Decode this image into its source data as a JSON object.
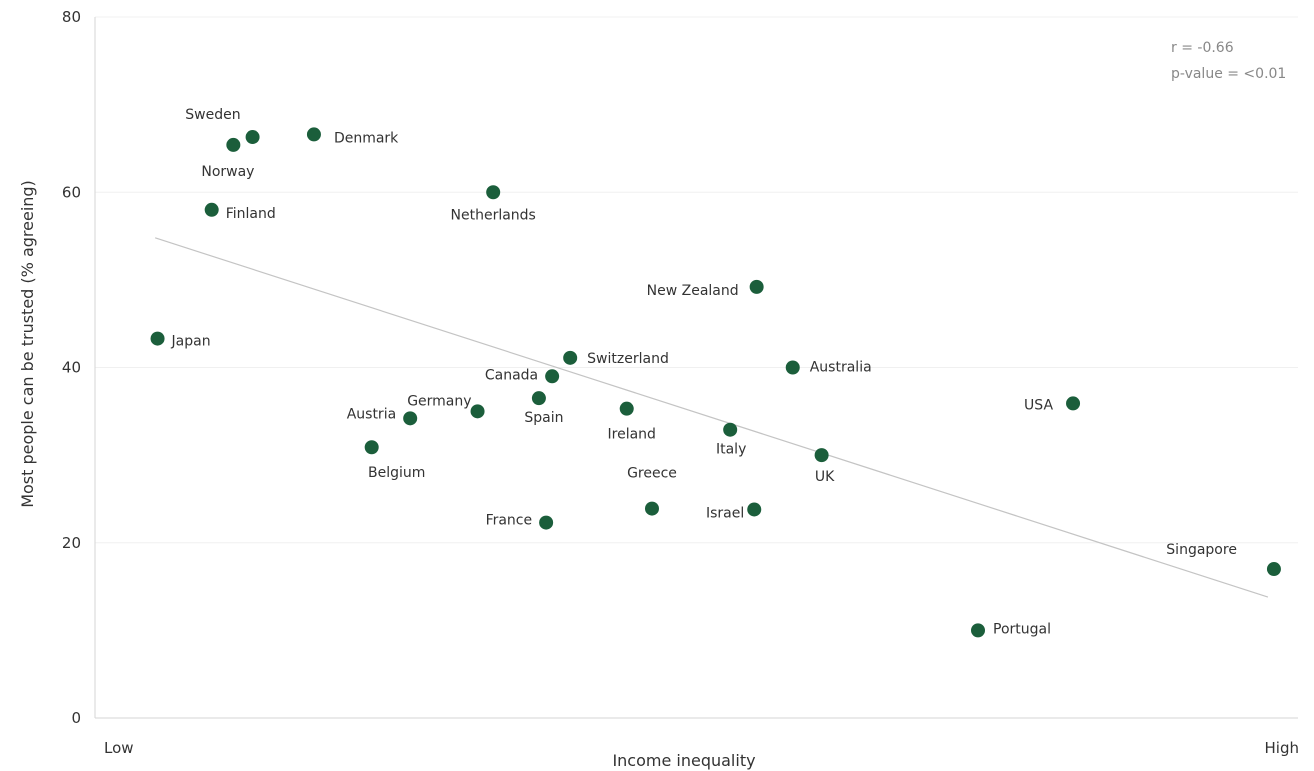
{
  "chart_data": {
    "type": "scatter",
    "xlabel": "Income inequality",
    "ylabel": "Most people can be trusted (% agreeing)",
    "x_tick_labels": {
      "low": "Low",
      "high": "High"
    },
    "ylim": [
      0,
      80
    ],
    "y_ticks": [
      0,
      20,
      40,
      60,
      80
    ],
    "x_scale": "relative (no numeric ticks)",
    "grid": "horizontal",
    "legend": "none",
    "stats": {
      "r": "r = -0.66",
      "p": "p-value = <0.01"
    },
    "point_color": "#1b5e3b",
    "trend_color": "#c4c4c4",
    "trend": {
      "start": [
        0.05,
        54.8
      ],
      "end": [
        0.975,
        13.8
      ]
    },
    "points": [
      {
        "label": "Sweden",
        "x": 0.131,
        "y": 66.3
      },
      {
        "label": "Norway",
        "x": 0.115,
        "y": 65.4
      },
      {
        "label": "Denmark",
        "x": 0.182,
        "y": 66.6
      },
      {
        "label": "Finland",
        "x": 0.097,
        "y": 58.0
      },
      {
        "label": "Netherlands",
        "x": 0.331,
        "y": 60.0
      },
      {
        "label": "New Zealand",
        "x": 0.55,
        "y": 49.2
      },
      {
        "label": "Japan",
        "x": 0.052,
        "y": 43.3
      },
      {
        "label": "Switzerland",
        "x": 0.395,
        "y": 41.1
      },
      {
        "label": "Canada",
        "x": 0.38,
        "y": 39.0
      },
      {
        "label": "Australia",
        "x": 0.58,
        "y": 40.0
      },
      {
        "label": "Spain",
        "x": 0.369,
        "y": 36.5
      },
      {
        "label": "Germany",
        "x": 0.318,
        "y": 35.0
      },
      {
        "label": "Ireland",
        "x": 0.442,
        "y": 35.3
      },
      {
        "label": "Austria",
        "x": 0.262,
        "y": 34.2
      },
      {
        "label": "Italy",
        "x": 0.528,
        "y": 32.9
      },
      {
        "label": "USA",
        "x": 0.813,
        "y": 35.9
      },
      {
        "label": "Belgium",
        "x": 0.23,
        "y": 30.9
      },
      {
        "label": "UK",
        "x": 0.604,
        "y": 30.0
      },
      {
        "label": "Greece",
        "x": 0.463,
        "y": 23.9
      },
      {
        "label": "Israel",
        "x": 0.548,
        "y": 23.8
      },
      {
        "label": "France",
        "x": 0.375,
        "y": 22.3
      },
      {
        "label": "Singapore",
        "x": 0.98,
        "y": 17.0
      },
      {
        "label": "Portugal",
        "x": 0.734,
        "y": 10.0
      }
    ]
  }
}
